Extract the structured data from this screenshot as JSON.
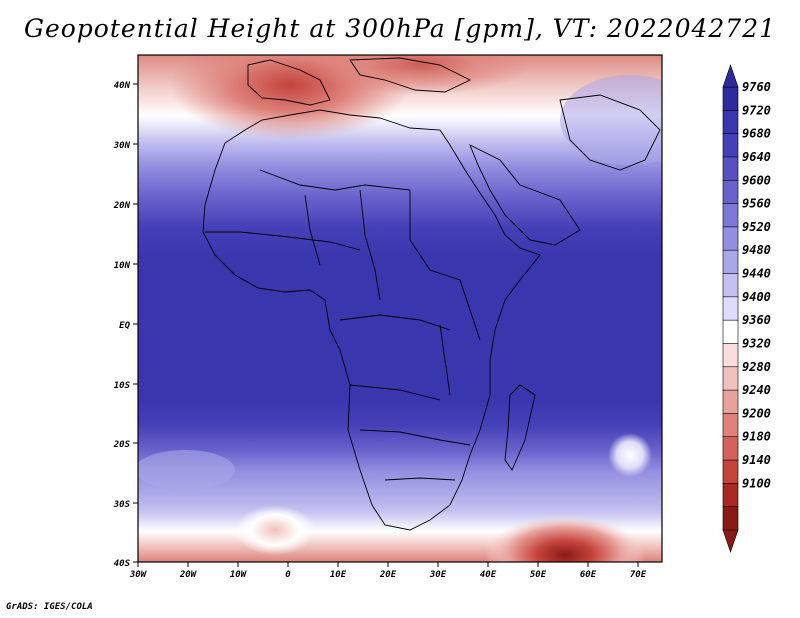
{
  "title": "Geopotential Height at 300hPa [gpm], VT: 2022042721",
  "credit": "GrADS: IGES/COLA",
  "axes": {
    "lat_labels": [
      "40N",
      "30N",
      "20N",
      "10N",
      "EQ",
      "10S",
      "20S",
      "30S",
      "40S"
    ],
    "lon_labels": [
      "30W",
      "20W",
      "10W",
      "0",
      "10E",
      "20E",
      "30E",
      "40E",
      "50E",
      "60E",
      "70E"
    ]
  },
  "colorbar": {
    "levels": [
      "9760",
      "9720",
      "9680",
      "9640",
      "9600",
      "9560",
      "9520",
      "9480",
      "9440",
      "9400",
      "9360",
      "9320",
      "9280",
      "9240",
      "9200",
      "9180",
      "9140",
      "9100"
    ],
    "colors": [
      "#2e2b9e",
      "#3a36ad",
      "#4640b8",
      "#5650c2",
      "#6962cc",
      "#7d77d6",
      "#938ee0",
      "#aaa6e8",
      "#c4c1f0",
      "#dedcf7",
      "#ffffff",
      "#f8dedc",
      "#f0c2bd",
      "#e8a29c",
      "#de827b",
      "#d4625a",
      "#c4443c",
      "#a82a24",
      "#8a1a16"
    ]
  }
}
